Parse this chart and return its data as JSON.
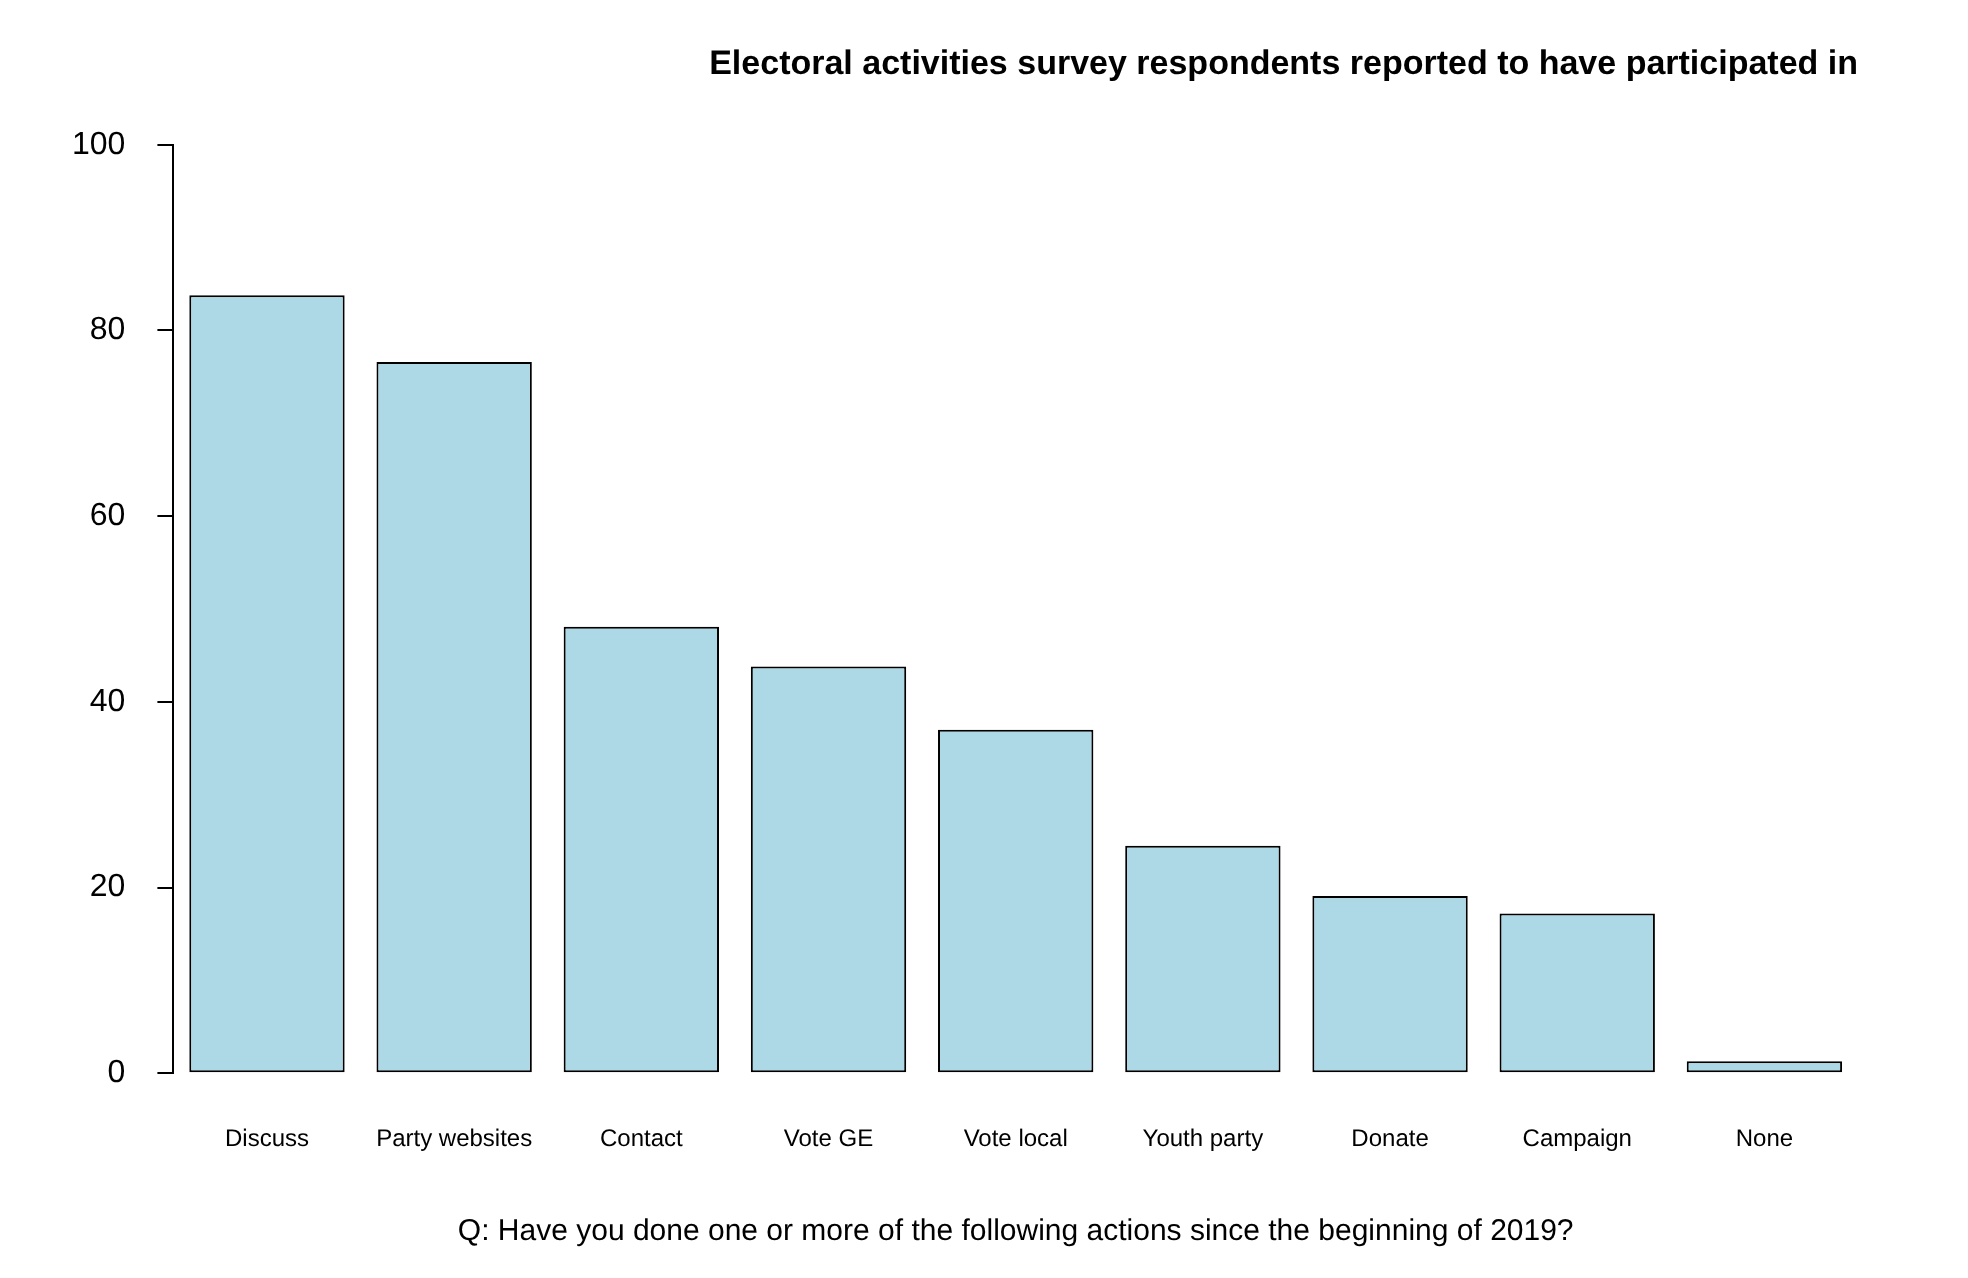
{
  "chart_data": {
    "type": "bar",
    "title": "Electoral activities survey respondents reported to have participated in",
    "xlabel": "Q: Have you done one or more of the following actions since the beginning of 2019?",
    "categories": [
      "Discuss",
      "Party websites",
      "Contact",
      "Vote GE",
      "Vote local",
      "Youth party",
      "Donate",
      "Campaign",
      "None"
    ],
    "values": [
      83.8,
      76.6,
      48.1,
      43.8,
      37.0,
      24.5,
      19.1,
      17.2,
      1.3
    ],
    "color": "#add8e6",
    "ylim": [
      0,
      100
    ],
    "yticks": [
      0,
      20,
      40,
      60,
      80,
      100
    ],
    "grid": false,
    "legend": false
  }
}
